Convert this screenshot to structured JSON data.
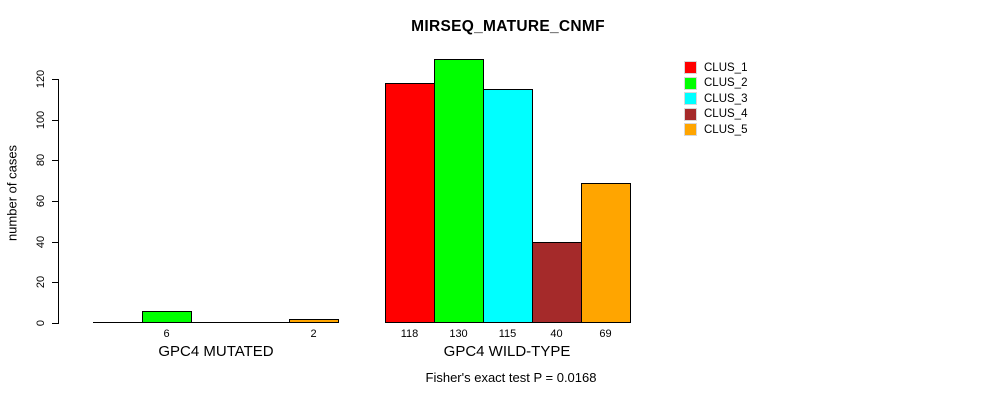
{
  "title": "MIRSEQ_MATURE_CNMF",
  "footnote": "Fisher's exact test P = 0.0168",
  "y_axis": {
    "label": "number of cases",
    "ticks": [
      0,
      20,
      40,
      60,
      80,
      100,
      120
    ]
  },
  "legend": {
    "position": "top-right",
    "entries": [
      {
        "label": "CLUS_1",
        "color": "#FF0000"
      },
      {
        "label": "CLUS_2",
        "color": "#00FF00"
      },
      {
        "label": "CLUS_3",
        "color": "#00FFFF"
      },
      {
        "label": "CLUS_4",
        "color": "#A52A2A"
      },
      {
        "label": "CLUS_5",
        "color": "#FFA500"
      }
    ]
  },
  "chart_data": {
    "type": "bar",
    "title": "MIRSEQ_MATURE_CNMF",
    "xlabel": "",
    "ylabel": "number of cases",
    "ylim": [
      0,
      130
    ],
    "yticks": [
      0,
      20,
      40,
      60,
      80,
      100,
      120
    ],
    "grid": false,
    "legend_position": "top-right",
    "categories": [
      "GPC4 MUTATED",
      "GPC4 WILD-TYPE"
    ],
    "series": [
      {
        "name": "CLUS_1",
        "color": "#FF0000",
        "values": [
          0,
          118
        ]
      },
      {
        "name": "CLUS_2",
        "color": "#00FF00",
        "values": [
          6,
          130
        ]
      },
      {
        "name": "CLUS_3",
        "color": "#00FFFF",
        "values": [
          0,
          115
        ]
      },
      {
        "name": "CLUS_4",
        "color": "#A52A2A",
        "values": [
          0,
          40
        ]
      },
      {
        "name": "CLUS_5",
        "color": "#FFA500",
        "values": [
          2,
          69
        ]
      }
    ],
    "bar_value_labels": {
      "GPC4 MUTATED": [
        null,
        "6",
        null,
        null,
        "2"
      ],
      "GPC4 WILD-TYPE": [
        "118",
        "130",
        "115",
        "40",
        "69"
      ]
    },
    "annotation": "Fisher's exact test P = 0.0168"
  }
}
